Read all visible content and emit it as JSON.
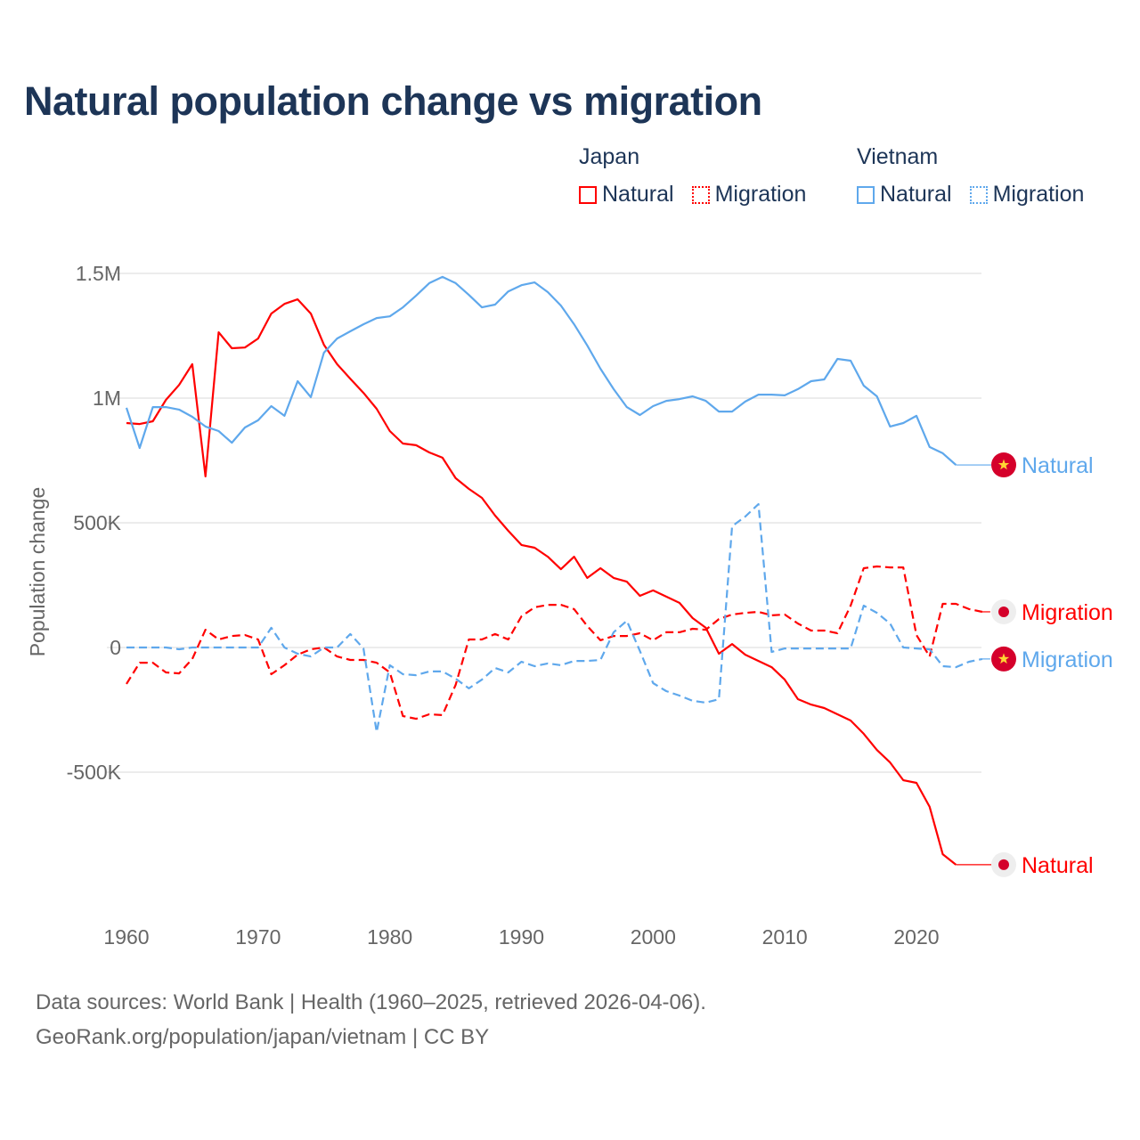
{
  "title": "Natural population change vs migration",
  "legend": {
    "groups": [
      {
        "name": "Japan",
        "items": [
          {
            "label": "Natural",
            "style": "solid",
            "color": "#ff0000"
          },
          {
            "label": "Migration",
            "style": "dotted",
            "color": "#ff0000"
          }
        ]
      },
      {
        "name": "Vietnam",
        "items": [
          {
            "label": "Natural",
            "style": "solid",
            "color": "#5fa8ec"
          },
          {
            "label": "Migration",
            "style": "dotted",
            "color": "#5fa8ec"
          }
        ]
      }
    ]
  },
  "footer": {
    "line1": "Data sources: World Bank | Health (1960–2025, retrieved 2026-04-06).",
    "line2": "GeoRank.org/population/japan/vietnam | CC BY"
  },
  "chart_data": {
    "type": "line",
    "title": "Natural population change vs migration",
    "xlabel": "",
    "ylabel": "Population change",
    "xlim": [
      1960,
      2025
    ],
    "ylim": [
      -1000000,
      1550000
    ],
    "x_ticks": [
      1960,
      1970,
      1980,
      1990,
      2000,
      2010,
      2020
    ],
    "x_tick_labels": [
      "1960",
      "1970",
      "1980",
      "1990",
      "2000",
      "2010",
      "2020"
    ],
    "y_ticks": [
      1500000,
      1000000,
      500000,
      0,
      -500000
    ],
    "y_tick_labels": [
      "1.5M",
      "1M",
      "500K",
      "0",
      "-500K"
    ],
    "grid": true,
    "legend_position": "top-right",
    "series": [
      {
        "name": "Japan Natural",
        "end_label": "Natural",
        "country": "Japan",
        "color": "#ff0000",
        "dash": false,
        "start_year": 1960,
        "values": [
          900000,
          896000,
          907000,
          993000,
          1053000,
          1136000,
          686000,
          1264000,
          1200000,
          1203000,
          1239000,
          1339000,
          1378000,
          1396000,
          1339000,
          1214000,
          1136000,
          1078000,
          1021000,
          957000,
          868000,
          818000,
          811000,
          782000,
          761000,
          679000,
          636000,
          600000,
          529000,
          468000,
          411000,
          400000,
          364000,
          314000,
          364000,
          279000,
          318000,
          279000,
          264000,
          207000,
          229000,
          204000,
          179000,
          118000,
          79000,
          -25000,
          14000,
          -29000,
          -54000,
          -79000,
          -129000,
          -207000,
          -229000,
          -243000,
          -268000,
          -293000,
          -346000,
          -411000,
          -461000,
          -532000,
          -543000,
          -639000,
          -829000,
          -871000
        ]
      },
      {
        "name": "Japan Migration",
        "end_label": "Migration",
        "country": "Japan",
        "color": "#ff0000",
        "dash": true,
        "start_year": 1960,
        "values": [
          -146000,
          -61000,
          -61000,
          -100000,
          -104000,
          -46000,
          71000,
          32000,
          46000,
          50000,
          32000,
          -107000,
          -71000,
          -29000,
          -7000,
          0,
          -36000,
          -50000,
          -50000,
          -61000,
          -100000,
          -275000,
          -286000,
          -268000,
          -271000,
          -150000,
          32000,
          32000,
          54000,
          32000,
          125000,
          161000,
          171000,
          171000,
          154000,
          86000,
          29000,
          46000,
          46000,
          57000,
          29000,
          61000,
          61000,
          75000,
          71000,
          114000,
          132000,
          139000,
          143000,
          129000,
          132000,
          96000,
          68000,
          68000,
          57000,
          168000,
          318000,
          325000,
          321000,
          321000,
          50000,
          -36000,
          175000,
          175000,
          154000,
          143000
        ]
      },
      {
        "name": "Vietnam Natural",
        "end_label": "Natural",
        "country": "Vietnam",
        "color": "#5fa8ec",
        "dash": false,
        "start_year": 1960,
        "values": [
          961000,
          800000,
          964000,
          964000,
          954000,
          925000,
          886000,
          868000,
          821000,
          882000,
          911000,
          968000,
          929000,
          1068000,
          1004000,
          1182000,
          1239000,
          1268000,
          1296000,
          1321000,
          1328000,
          1364000,
          1411000,
          1461000,
          1486000,
          1461000,
          1414000,
          1364000,
          1375000,
          1428000,
          1453000,
          1464000,
          1425000,
          1371000,
          1296000,
          1211000,
          1118000,
          1036000,
          964000,
          932000,
          968000,
          989000,
          996000,
          1007000,
          989000,
          946000,
          946000,
          986000,
          1014000,
          1014000,
          1011000,
          1036000,
          1068000,
          1075000,
          1157000,
          1150000,
          1050000,
          1007000,
          886000,
          900000,
          929000,
          804000,
          779000,
          732000
        ]
      },
      {
        "name": "Vietnam Migration",
        "end_label": "Migration",
        "country": "Vietnam",
        "color": "#5fa8ec",
        "dash": true,
        "start_year": 1960,
        "values": [
          0,
          0,
          0,
          0,
          -7000,
          0,
          0,
          0,
          0,
          0,
          0,
          79000,
          0,
          -25000,
          -36000,
          0,
          0,
          54000,
          -4000,
          -339000,
          -71000,
          -107000,
          -111000,
          -96000,
          -96000,
          -125000,
          -164000,
          -129000,
          -82000,
          -100000,
          -57000,
          -75000,
          -64000,
          -71000,
          -54000,
          -54000,
          -50000,
          61000,
          107000,
          -14000,
          -143000,
          -175000,
          -193000,
          -214000,
          -221000,
          -207000,
          486000,
          525000,
          575000,
          -18000,
          -4000,
          -4000,
          -4000,
          -4000,
          -4000,
          -4000,
          168000,
          139000,
          96000,
          0,
          -4000,
          -7000,
          -75000,
          -79000,
          -57000,
          -46000
        ]
      }
    ]
  }
}
